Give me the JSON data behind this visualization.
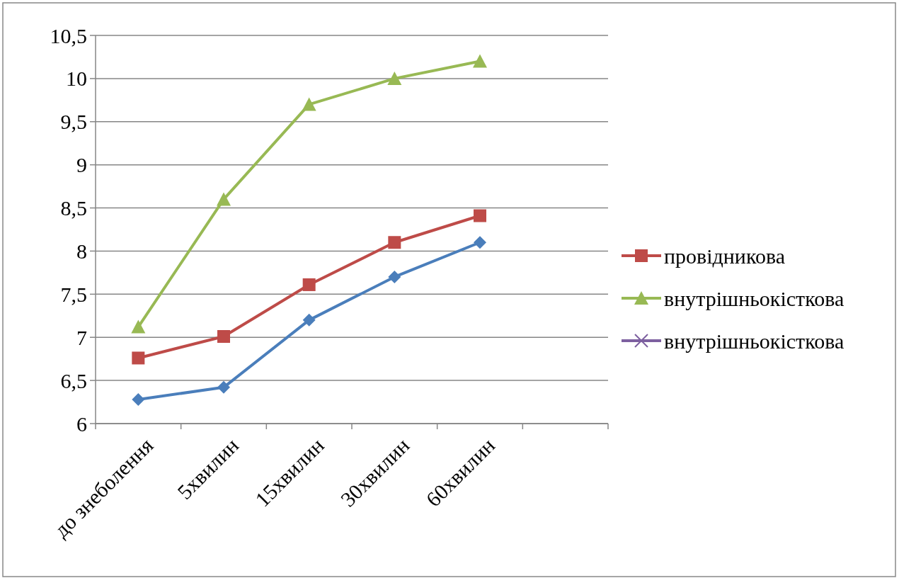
{
  "chart_data": {
    "type": "line",
    "categories": [
      "до знеболення",
      "5хвилин",
      "15хвилин",
      "30хвилин",
      "60хвилин",
      null
    ],
    "series": [
      {
        "color": "#4a7ebb",
        "marker": "diamond",
        "values": [
          6.28,
          6.42,
          7.2,
          7.7,
          8.1,
          null
        ]
      },
      {
        "name": "провідникова",
        "color": "#be4b48",
        "marker": "square",
        "values": [
          6.76,
          7.01,
          7.61,
          8.1,
          8.41,
          null
        ]
      },
      {
        "name": "внутрішньокісткова",
        "color": "#98b954",
        "marker": "triangle",
        "values": [
          7.12,
          8.6,
          9.7,
          10.0,
          10.2,
          null
        ]
      },
      {
        "name": "внутрішньокісткова",
        "color": "#7d60a0",
        "marker": "cross",
        "values": [
          null,
          null,
          null,
          null,
          null,
          null
        ]
      }
    ],
    "ylim": [
      6,
      10.5
    ],
    "yticks": [
      6,
      {
        "value": 6.5,
        "label": "6,5"
      },
      7,
      {
        "value": 7.5,
        "label": "7,5"
      },
      8,
      {
        "value": 8.5,
        "label": "8,5"
      },
      9,
      {
        "value": 9.5,
        "label": "9,5"
      },
      10,
      {
        "value": 10.5,
        "label": "10,5"
      }
    ],
    "grid": "y",
    "legend": "right"
  }
}
